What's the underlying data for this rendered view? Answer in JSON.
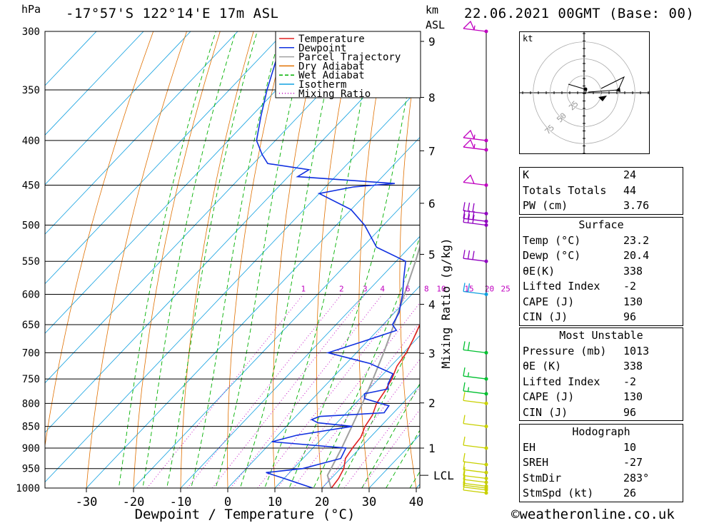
{
  "header": {
    "location": "-17°57'S  122°14'E  17m  ASL",
    "datetime": "22.06.2021  00GMT  (Base: 00)",
    "pressure_unit": "hPa",
    "height_unit": "km",
    "height_ref": "ASL"
  },
  "legend": [
    {
      "label": "Temperature",
      "color": "#e02020",
      "style": "solid"
    },
    {
      "label": "Dewpoint",
      "color": "#1030e0",
      "style": "solid"
    },
    {
      "label": "Parcel Trajectory",
      "color": "#a0a0a0",
      "style": "solid"
    },
    {
      "label": "Dry Adiabat",
      "color": "#e07000",
      "style": "solid"
    },
    {
      "label": "Wet Adiabat",
      "color": "#00b000",
      "style": "dashed"
    },
    {
      "label": "Isotherm",
      "color": "#10a0e0",
      "style": "solid"
    },
    {
      "label": "Mixing Ratio",
      "color": "#c000c0",
      "style": "dotted"
    }
  ],
  "chart_data": {
    "type": "line",
    "title": "Skew-T log-P sounding",
    "xlabel": "Dewpoint / Temperature (°C)",
    "ylabel": "hPa",
    "mixing_ratio_axis_label": "Mixing Ratio (g/kg)",
    "xlim": [
      -40,
      40
    ],
    "x_ticks": [
      "-30",
      "-20",
      "-10",
      "0",
      "10",
      "20",
      "30",
      "40"
    ],
    "pressure_levels": [
      300,
      350,
      400,
      450,
      500,
      550,
      600,
      650,
      700,
      750,
      800,
      850,
      900,
      950,
      1000
    ],
    "height_km_ticks": [
      1,
      2,
      3,
      4,
      5,
      6,
      7,
      8,
      9
    ],
    "height_km_pressures": [
      900,
      799,
      701,
      616,
      540,
      472,
      411,
      357,
      308
    ],
    "lcl_label": "LCL",
    "lcl_pressure": 967,
    "mixing_ratio_labels": [
      "1",
      "2",
      "3",
      "4",
      "6",
      "8",
      "10",
      "15",
      "20",
      "25"
    ],
    "mixing_ratio_values": [
      1,
      2,
      3,
      4,
      6,
      8,
      10,
      15,
      20,
      25
    ],
    "series": [
      {
        "name": "Temperature",
        "points": [
          [
            1013,
            23.2
          ],
          [
            1000,
            22
          ],
          [
            975,
            21.6
          ],
          [
            950,
            20.7
          ],
          [
            925,
            19
          ],
          [
            900,
            18.4
          ],
          [
            875,
            18
          ],
          [
            850,
            16.7
          ],
          [
            825,
            16
          ],
          [
            800,
            14.5
          ],
          [
            775,
            13.8
          ],
          [
            750,
            12.8
          ],
          [
            725,
            11.3
          ],
          [
            700,
            10.6
          ],
          [
            675,
            9.3
          ],
          [
            650,
            7.8
          ],
          [
            625,
            6.2
          ],
          [
            600,
            4.5
          ],
          [
            575,
            2.6
          ],
          [
            550,
            0.6
          ],
          [
            525,
            -1.5
          ],
          [
            500,
            -4.8
          ],
          [
            475,
            -6.3
          ],
          [
            450,
            -9.6
          ],
          [
            435,
            -10.9
          ],
          [
            425,
            -11.5
          ],
          [
            400,
            -15.5
          ],
          [
            375,
            -20
          ],
          [
            350,
            -25.5
          ]
        ]
      },
      {
        "name": "Dewpoint",
        "points": [
          [
            1013,
            20.4
          ],
          [
            1000,
            18
          ],
          [
            975,
            10
          ],
          [
            960,
            5
          ],
          [
            950,
            12
          ],
          [
            925,
            18
          ],
          [
            900,
            17
          ],
          [
            885,
            0
          ],
          [
            870,
            4
          ],
          [
            850,
            14
          ],
          [
            842,
            6
          ],
          [
            835,
            4
          ],
          [
            828,
            5
          ],
          [
            820,
            18
          ],
          [
            805,
            17.6
          ],
          [
            790,
            11
          ],
          [
            780,
            10
          ],
          [
            770,
            14
          ],
          [
            760,
            13
          ],
          [
            740,
            12
          ],
          [
            720,
            5
          ],
          [
            700,
            -6
          ],
          [
            680,
            -1
          ],
          [
            660,
            4
          ],
          [
            650,
            2
          ],
          [
            630,
            1
          ],
          [
            600,
            -2
          ],
          [
            575,
            -5
          ],
          [
            550,
            -8
          ],
          [
            530,
            -17
          ],
          [
            500,
            -24
          ],
          [
            480,
            -30
          ],
          [
            460,
            -40
          ],
          [
            452,
            -34
          ],
          [
            448,
            -26
          ],
          [
            440,
            -48
          ],
          [
            432,
            -47
          ],
          [
            425,
            -57
          ],
          [
            415,
            -60
          ],
          [
            400,
            -64
          ],
          [
            375,
            -68
          ],
          [
            350,
            -72
          ],
          [
            300,
            -80
          ]
        ]
      },
      {
        "name": "Parcel Trajectory",
        "points": [
          [
            1013,
            23.2
          ],
          [
            967,
            18.6
          ],
          [
            950,
            18
          ],
          [
            900,
            16.1
          ],
          [
            850,
            13.9
          ],
          [
            800,
            11.5
          ],
          [
            750,
            8.8
          ],
          [
            700,
            5.8
          ],
          [
            650,
            2.3
          ],
          [
            600,
            -1.6
          ],
          [
            550,
            -5.9
          ],
          [
            500,
            -10.9
          ],
          [
            450,
            -16.7
          ],
          [
            400,
            -23.8
          ],
          [
            350,
            -32.5
          ],
          [
            300,
            -42.5
          ]
        ]
      }
    ]
  },
  "winds": {
    "barb_pressures": [
      300,
      400,
      410,
      450,
      485,
      495,
      500,
      550,
      600,
      700,
      750,
      780,
      800,
      850,
      900,
      940,
      960,
      975,
      985,
      995,
      1000,
      1005,
      1013
    ],
    "barb_speeds_kt": [
      55,
      55,
      55,
      50,
      30,
      30,
      30,
      30,
      20,
      20,
      15,
      15,
      10,
      10,
      10,
      10,
      10,
      10,
      10,
      10,
      10,
      10,
      10
    ]
  },
  "hodograph": {
    "unit": "kt",
    "ring_labels": [
      "25",
      "50",
      "75"
    ],
    "ring_values": [
      25,
      50,
      75
    ]
  },
  "indices": {
    "general": [
      {
        "label": "K",
        "value": "24"
      },
      {
        "label": "Totals Totals",
        "value": "44"
      },
      {
        "label": "PW (cm)",
        "value": "3.76"
      }
    ],
    "surface": {
      "title": "Surface",
      "rows": [
        {
          "label": "Temp (°C)",
          "value": "23.2"
        },
        {
          "label": "Dewp (°C)",
          "value": "20.4"
        },
        {
          "label": "θE(K)",
          "value": "338"
        },
        {
          "label": "Lifted Index",
          "value": "-2"
        },
        {
          "label": "CAPE (J)",
          "value": "130"
        },
        {
          "label": "CIN (J)",
          "value": "96"
        }
      ]
    },
    "most_unstable": {
      "title": "Most Unstable",
      "rows": [
        {
          "label": "Pressure (mb)",
          "value": "1013"
        },
        {
          "label": "θE (K)",
          "value": "338"
        },
        {
          "label": "Lifted Index",
          "value": "-2"
        },
        {
          "label": "CAPE (J)",
          "value": "130"
        },
        {
          "label": "CIN (J)",
          "value": "96"
        }
      ]
    },
    "hodograph_box": {
      "title": "Hodograph",
      "rows": [
        {
          "label": "EH",
          "value": "10"
        },
        {
          "label": "SREH",
          "value": "-27"
        },
        {
          "label": "StmDir",
          "value": "283°"
        },
        {
          "label": "StmSpd (kt)",
          "value": "26"
        }
      ]
    }
  },
  "footer": {
    "credit": "©weatheronline.co.uk"
  }
}
